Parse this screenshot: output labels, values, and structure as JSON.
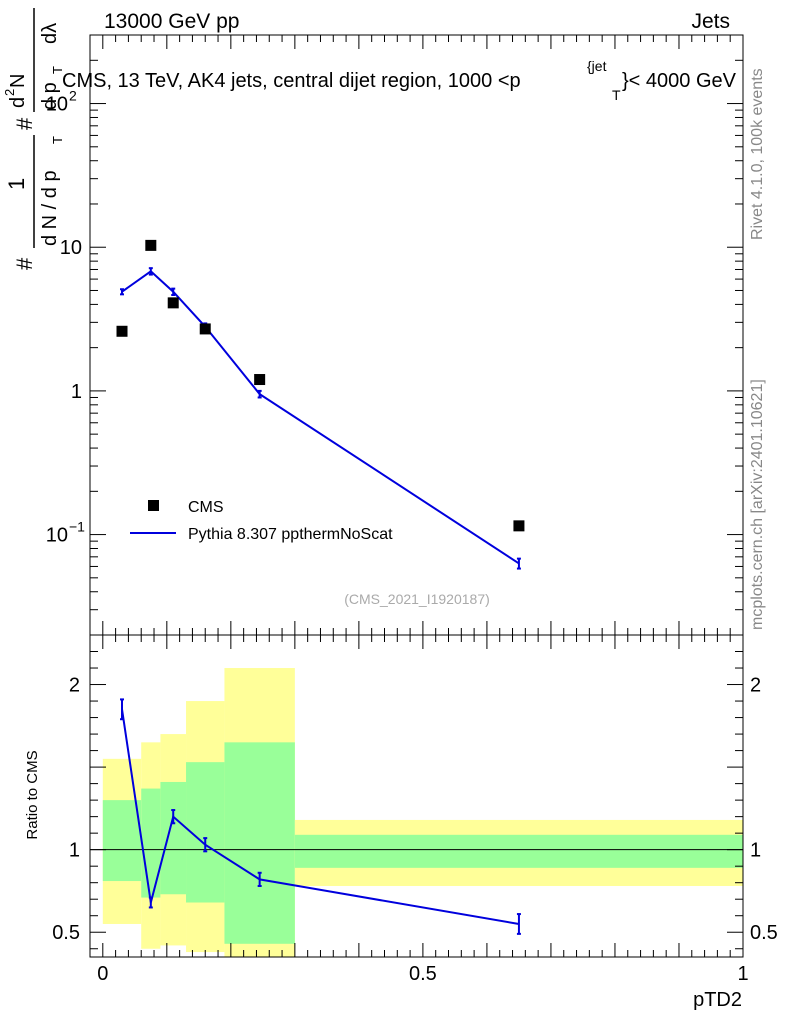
{
  "header": {
    "left": "13000 GeV pp",
    "right": "Jets"
  },
  "side_labels": {
    "rivet": "Rivet 4.1.0,  100k events",
    "mcplots": "mcplots.cern.ch [arXiv:2401.10621]"
  },
  "colors": {
    "mc": "#0000dd",
    "data": "#000000",
    "band_inner": "#99ff99",
    "band_outer": "#ffff99"
  },
  "chart_data": [
    {
      "type": "scatter",
      "panel": "main",
      "title": "CMS, 13 TeV, AK4 jets, central dijet region, 1000 <p_T^{jet}< 4000 GeV",
      "title_parts": {
        "pre": "CMS, 13 TeV, AK4 jets, central dijet region, 1000 <p",
        "sub": "T",
        "sup": "{jet",
        "post": "}< 4000 GeV"
      },
      "ylabel": "1/(dN/dp_T) d²N/(dp_T dλ)",
      "ylabel_parts": {
        "num": "1",
        "den": "d N / d p",
        "den_sub": "T",
        "deriv_sup": "2",
        "deriv_den": "d p",
        "deriv_den_sub": "T",
        "deriv_tail": "dλ",
        "hash": "#"
      },
      "yscale": "log",
      "ylim": [
        0.02,
        300
      ],
      "xlim": [
        -0.02,
        1.0
      ],
      "yticks": [
        {
          "value": 0.1,
          "base": "10",
          "exp": "−1"
        },
        {
          "value": 1,
          "label": "1"
        },
        {
          "value": 10,
          "label": "10"
        },
        {
          "value": 100,
          "base": "10",
          "exp": "2"
        }
      ],
      "watermark": "(CMS_2021_I1920187)",
      "legend": {
        "position": "bottom-left",
        "entries": [
          "CMS",
          "Pythia 8.307 ppthermNoScat"
        ]
      },
      "series": [
        {
          "name": "CMS",
          "style": "markers",
          "x": [
            0.03,
            0.075,
            0.11,
            0.16,
            0.245,
            0.65
          ],
          "values": [
            2.6,
            10.3,
            4.1,
            2.7,
            1.2,
            0.115
          ]
        },
        {
          "name": "Pythia 8.307 ppthermNoScat",
          "style": "line",
          "x": [
            0.03,
            0.075,
            0.11,
            0.16,
            0.245,
            0.65
          ],
          "values": [
            4.9,
            6.8,
            4.9,
            2.8,
            0.95,
            0.063
          ],
          "errors": [
            0.2,
            0.35,
            0.25,
            0.15,
            0.05,
            0.005
          ]
        }
      ]
    },
    {
      "type": "line",
      "panel": "ratio",
      "ylabel": "Ratio to CMS",
      "xlabel": "pTD2",
      "ylim": [
        0.35,
        2.3
      ],
      "xlim": [
        -0.02,
        1.0
      ],
      "yticks": [
        0.5,
        1,
        2
      ],
      "xticks": [
        {
          "value": 0,
          "label": "0"
        },
        {
          "value": 0.5,
          "label": "0.5"
        },
        {
          "value": 1,
          "label": "1"
        }
      ],
      "reference_line": 1,
      "bands": [
        {
          "x0": 0.0,
          "x1": 0.06,
          "inner_lo": 0.81,
          "inner_hi": 1.3,
          "outer_lo": 0.55,
          "outer_hi": 1.55
        },
        {
          "x0": 0.06,
          "x1": 0.09,
          "inner_lo": 0.71,
          "inner_hi": 1.37,
          "outer_lo": 0.4,
          "outer_hi": 1.65
        },
        {
          "x0": 0.09,
          "x1": 0.13,
          "inner_lo": 0.73,
          "inner_hi": 1.41,
          "outer_lo": 0.42,
          "outer_hi": 1.7
        },
        {
          "x0": 0.13,
          "x1": 0.19,
          "inner_lo": 0.68,
          "inner_hi": 1.53,
          "outer_lo": 0.38,
          "outer_hi": 1.9
        },
        {
          "x0": 0.19,
          "x1": 0.3,
          "inner_lo": 0.43,
          "inner_hi": 1.65,
          "outer_lo": 0.3,
          "outer_hi": 2.1
        },
        {
          "x0": 0.3,
          "x1": 1.0,
          "inner_lo": 0.89,
          "inner_hi": 1.09,
          "outer_lo": 0.78,
          "outer_hi": 1.18
        }
      ],
      "series": [
        {
          "name": "Pythia 8.307 ppthermNoScat / CMS",
          "x": [
            0.03,
            0.075,
            0.11,
            0.16,
            0.245,
            0.65
          ],
          "values": [
            1.85,
            0.68,
            1.2,
            1.03,
            0.82,
            0.55
          ],
          "errors": [
            0.06,
            0.03,
            0.04,
            0.04,
            0.04,
            0.06
          ]
        }
      ]
    }
  ]
}
